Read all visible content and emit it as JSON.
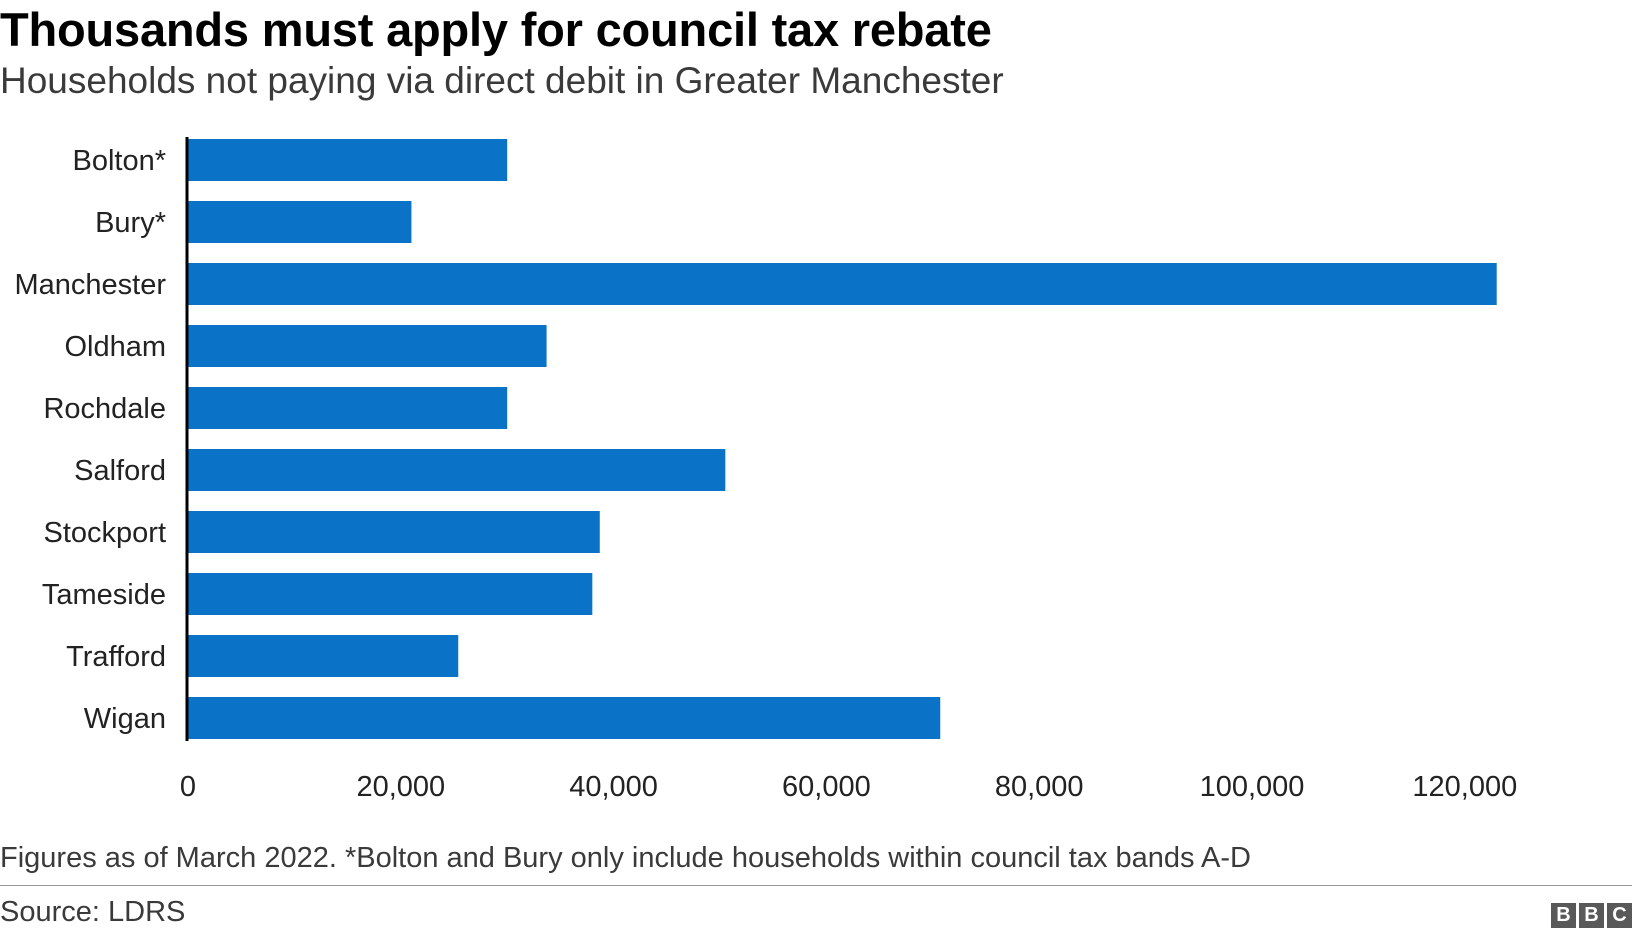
{
  "header": {
    "title": "Thousands must apply for council tax rebate",
    "subtitle": "Households not paying via direct debit in Greater Manchester"
  },
  "footer": {
    "note": "Figures as of March 2022. *Bolton and Bury only include households within council tax bands A-D",
    "source": "Source: LDRS",
    "logo_letters": [
      "B",
      "B",
      "C"
    ]
  },
  "colors": {
    "bar": "#0a73c7",
    "axis": "#000000",
    "label": "#222222"
  },
  "chart_data": {
    "type": "bar",
    "orientation": "horizontal",
    "title": "Thousands must apply for council tax rebate",
    "subtitle": "Households not paying via direct debit in Greater Manchester",
    "categories": [
      "Bolton*",
      "Bury*",
      "Manchester",
      "Oldham",
      "Rochdale",
      "Salford",
      "Stockport",
      "Tameside",
      "Trafford",
      "Wigan"
    ],
    "values": [
      30000,
      21000,
      123000,
      33700,
      30000,
      50500,
      38700,
      38000,
      25400,
      70700
    ],
    "xlim": [
      0,
      125000
    ],
    "xticks": [
      0,
      20000,
      40000,
      60000,
      80000,
      100000,
      120000
    ],
    "xtick_labels": [
      "0",
      "20,000",
      "40,000",
      "60,000",
      "80,000",
      "100,000",
      "120,000"
    ],
    "xlabel": "",
    "ylabel": "",
    "grid": false,
    "legend": "none"
  }
}
